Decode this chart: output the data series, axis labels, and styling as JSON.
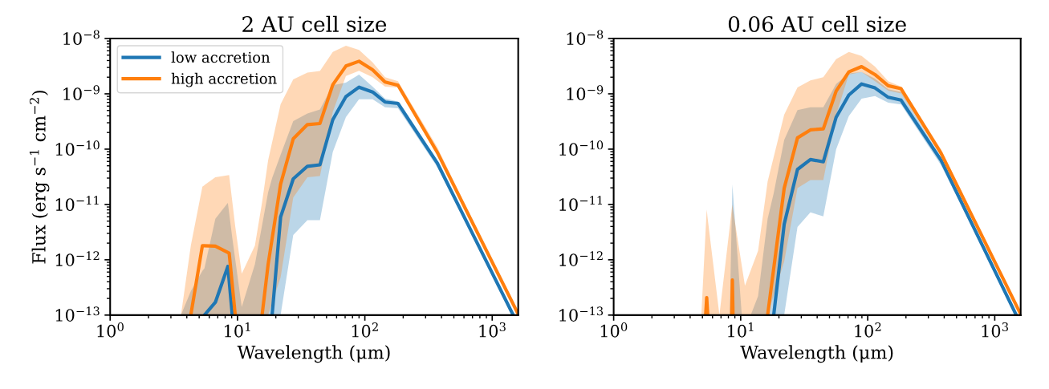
{
  "chart_data": [
    {
      "type": "line",
      "title": "2 AU cell size",
      "xlabel": "Wavelength (μm)",
      "ylabel": "Flux (erg s$^{−1}$ cm$^{−2}$)",
      "log": "xy",
      "legend": "top left",
      "grid": false,
      "marker": "none",
      "line_style": "solid",
      "xlim": [
        1,
        1600
      ],
      "ylim": [
        1e-13,
        1e-08
      ],
      "xticks": [
        {
          "value": 1,
          "label": "10$^{0}$"
        },
        {
          "value": 10,
          "label": "10$^{1}$"
        },
        {
          "value": 100,
          "label": "10$^{2}$"
        },
        {
          "value": 1000,
          "label": "10$^{3}$"
        }
      ],
      "yticks": [
        {
          "value": 1e-13,
          "label": "10$^{−13}$"
        },
        {
          "value": 1e-12,
          "label": "10$^{−12}$"
        },
        {
          "value": 1e-11,
          "label": "10$^{−11}$"
        },
        {
          "value": 1e-10,
          "label": "10$^{−10}$"
        },
        {
          "value": 1e-09,
          "label": "10$^{−9}$"
        },
        {
          "value": 1e-08,
          "label": "10$^{−8}$"
        }
      ],
      "series": [
        {
          "name": "low accretion",
          "color": "#1f77b4",
          "x": [
            3.6,
            4.3,
            5.3,
            5.5,
            6.7,
            8.4,
            9.1,
            10.8,
            13.7,
            17.4,
            18.7,
            21.8,
            27.4,
            35.4,
            44.4,
            56,
            71,
            90,
            115,
            144,
            182,
            369,
            1462
          ],
          "values": [
            null,
            null,
            null,
            1e-13,
            1.7e-13,
            7.6e-13,
            1e-13,
            null,
            null,
            null,
            1e-13,
            5.9e-12,
            2.9e-11,
            4.9e-11,
            5.2e-11,
            3.4e-10,
            8.9e-10,
            1.32e-09,
            1.08e-09,
            7.1e-10,
            6.7e-10,
            5.7e-11,
            1e-13
          ],
          "upper": [
            1e-13,
            2.7e-13,
            6.3e-13,
            7e-13,
            5.5e-12,
            1.07e-11,
            2.5e-12,
            1.4e-13,
            8.3e-13,
            1.66e-11,
            3e-11,
            7.9e-11,
            3.2e-10,
            4.4e-10,
            5.2e-10,
            1.43e-09,
            1.6e-09,
            2.23e-09,
            1.35e-09,
            8.2e-10,
            7.3e-10,
            6.3e-11,
            1e-13
          ],
          "lower": [
            1e-13,
            1e-13,
            1e-13,
            1e-13,
            1e-13,
            1e-13,
            1e-13,
            1e-13,
            1e-13,
            1e-13,
            1e-13,
            1e-13,
            2.8e-12,
            5.2e-12,
            5.2e-12,
            8.9e-11,
            3.8e-10,
            8e-10,
            8e-10,
            5.7e-10,
            5.5e-10,
            4.8e-11,
            1e-13
          ]
        },
        {
          "name": "high accretion",
          "color": "#ff7f0e",
          "x": [
            3.6,
            4.3,
            5.3,
            6.7,
            8.6,
            9.6,
            10.8,
            13.7,
            15.6,
            17.4,
            21.8,
            27.4,
            35.4,
            44.4,
            56,
            71,
            90,
            115,
            144,
            182,
            369,
            1580
          ],
          "values": [
            null,
            1e-13,
            1.8e-12,
            1.76e-12,
            1.32e-12,
            1e-13,
            null,
            null,
            1e-13,
            8.3e-13,
            2.33e-11,
            1.54e-10,
            2.78e-10,
            2.91e-10,
            1.46e-09,
            3.18e-09,
            3.88e-09,
            2.72e-09,
            1.63e-09,
            1.43e-09,
            8.9e-11,
            1.1e-13
          ],
          "upper": [
            1e-13,
            1.8e-12,
            2.1e-11,
            3.1e-11,
            3.4e-11,
            4e-12,
            5.6e-13,
            1.8e-12,
            1.1e-11,
            6.3e-11,
            6.5e-10,
            1.82e-09,
            2.43e-09,
            2.58e-09,
            5.7e-09,
            7.4e-09,
            6.2e-09,
            3.7e-09,
            2e-09,
            1.69e-09,
            1.1e-10,
            1.15e-13
          ],
          "lower": [
            1e-13,
            1e-13,
            1e-13,
            1e-13,
            1e-13,
            1e-13,
            1e-13,
            1e-13,
            1e-13,
            1e-13,
            4.8e-13,
            1.34e-11,
            3.1e-11,
            3.25e-11,
            4.7e-10,
            2.1e-09,
            2.6e-09,
            2e-09,
            1.35e-09,
            1.29e-09,
            7.9e-11,
            1e-13
          ]
        }
      ]
    },
    {
      "type": "line",
      "title": "0.06 AU cell size",
      "xlabel": "Wavelength (μm)",
      "log": "xy",
      "grid": false,
      "marker": "none",
      "line_style": "solid",
      "xlim": [
        1,
        1600
      ],
      "ylim": [
        1e-13,
        1e-08
      ],
      "xticks": [
        {
          "value": 1,
          "label": "10$^{0}$"
        },
        {
          "value": 10,
          "label": "10$^{1}$"
        },
        {
          "value": 100,
          "label": "10$^{2}$"
        },
        {
          "value": 1000,
          "label": "10$^{3}$"
        }
      ],
      "yticks": [
        {
          "value": 1e-13,
          "label": "10$^{−13}$"
        },
        {
          "value": 1e-12,
          "label": "10$^{−12}$"
        },
        {
          "value": 1e-11,
          "label": "10$^{−11}$"
        },
        {
          "value": 1e-10,
          "label": "10$^{−10}$"
        },
        {
          "value": 1e-09,
          "label": "10$^{−9}$"
        },
        {
          "value": 1e-08,
          "label": "10$^{−8}$"
        }
      ],
      "series": [
        {
          "color": "#1f77b4",
          "x": [
            8.2,
            8.6,
            10.2,
            12.0,
            13.7,
            16.3,
            18.2,
            22,
            28,
            35.4,
            44.7,
            56.4,
            71,
            89.5,
            114,
            145,
            183,
            378,
            1477
          ],
          "values": [
            null,
            null,
            null,
            null,
            null,
            null,
            1e-13,
            4.4e-12,
            4.3e-11,
            6.5e-11,
            5.9e-11,
            3.76e-10,
            9.5e-10,
            1.51e-09,
            1.28e-09,
            8.65e-10,
            7.7e-10,
            6.3e-11,
            1e-13
          ],
          "upper": [
            1e-13,
            2.3e-11,
            1e-13,
            1e-13,
            2.2e-13,
            5.5e-12,
            1.6e-11,
            1.46e-10,
            5.1e-10,
            5.7e-10,
            5.7e-10,
            1.51e-09,
            2.35e-09,
            2.49e-09,
            1.88e-09,
            1.21e-09,
            1.08e-09,
            7.1e-11,
            1e-13
          ],
          "lower": [
            1e-13,
            1e-13,
            1e-13,
            1e-13,
            1e-13,
            1e-13,
            1e-13,
            1e-13,
            3.9e-12,
            7.2e-12,
            6.1e-12,
            9.9e-11,
            3.97e-10,
            8.2e-10,
            9.1e-10,
            6.9e-10,
            6.4e-10,
            5.1e-11,
            1e-13
          ]
        },
        {
          "color": "#ff7f0e",
          "x": [
            4.9,
            5.3,
            5.4,
            5.5,
            6.8,
            8.5,
            8.6,
            8.7,
            10.8,
            13.7,
            16.3,
            22,
            28,
            35.4,
            44.7,
            56.4,
            71,
            89.5,
            114,
            145,
            183,
            378,
            1580
          ],
          "values": [
            null,
            1e-13,
            2.06e-13,
            1e-13,
            null,
            1e-13,
            4.3e-13,
            1e-13,
            null,
            null,
            1e-13,
            1.97e-11,
            1.6e-10,
            2.23e-10,
            2.33e-10,
            1.12e-09,
            2.49e-09,
            3.11e-09,
            2.23e-09,
            1.4e-09,
            1.24e-09,
            8.4e-11,
            1.1e-13
          ],
          "upper": [
            1e-13,
            3.5e-12,
            8.1e-12,
            5.5e-12,
            1e-13,
            8e-12,
            1e-11,
            8e-12,
            3.4e-13,
            1.45e-12,
            2.6e-11,
            4.2e-10,
            1.31e-09,
            1.75e-09,
            2e-09,
            4.25e-09,
            5.7e-09,
            4.85e-09,
            3.1e-09,
            1.69e-09,
            1.35e-09,
            9.9e-11,
            1.15e-13
          ],
          "lower": [
            1e-13,
            1e-13,
            1e-13,
            1e-13,
            1e-13,
            1e-13,
            1e-13,
            1e-13,
            1e-13,
            1e-13,
            1e-13,
            9.3e-13,
            1.97e-11,
            2.75e-11,
            2.75e-11,
            4.2e-10,
            2.23e-09,
            2.49e-09,
            1.69e-09,
            1.14e-09,
            1.02e-09,
            7.9e-11,
            1e-13
          ]
        }
      ]
    }
  ]
}
